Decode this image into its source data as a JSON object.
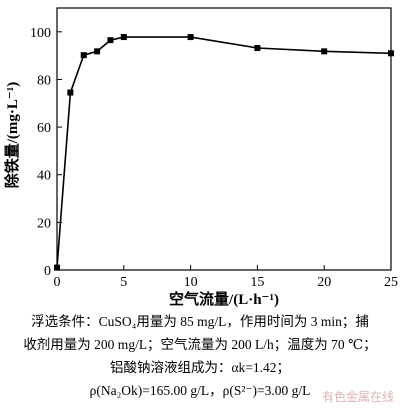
{
  "chart_data": {
    "type": "line",
    "xlabel": "空气流量/(L·h⁻¹)",
    "ylabel": "除铁量/(mg·L⁻¹)",
    "xlim": [
      0,
      25
    ],
    "ylim": [
      0,
      110
    ],
    "xticks": [
      0,
      5,
      10,
      15,
      20,
      25
    ],
    "yticks": [
      0,
      20,
      40,
      60,
      80,
      100
    ],
    "grid": false,
    "series": [
      {
        "x": [
          0,
          1,
          2,
          3,
          4,
          5,
          10,
          15,
          20,
          25
        ],
        "y": [
          1,
          74.5,
          90.2,
          91.8,
          96.5,
          97.8,
          97.8,
          93.2,
          91.8,
          91.0
        ],
        "marker": "square",
        "color": "#000000"
      }
    ]
  },
  "caption": {
    "line1": "浮选条件：CuSO₄用量为 85 mg/L，作用时间为 3 min；捕",
    "line2": "收剂用量为 200 mg/L；空气流量为 200 L/h；温度为 70 ℃；",
    "line3": "铝酸钠溶液组成为：αk=1.42；",
    "line4": "ρ(Na₂Ok)=165.00 g/L，ρ(S²⁻)=3.00 g/L"
  },
  "watermark": "有色金属在线"
}
